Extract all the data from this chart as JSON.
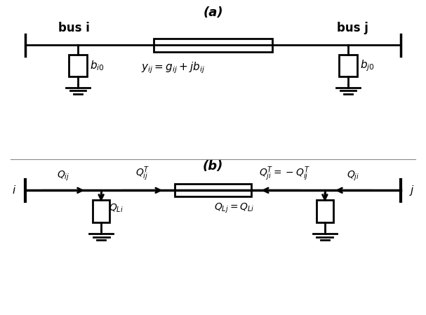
{
  "fig_width": 6.07,
  "fig_height": 4.49,
  "bg_color": "#ffffff",
  "line_color": "#000000",
  "text_color": "#000000",
  "panel_a_label": "(a)",
  "panel_b_label": "(b)",
  "bus_i_label": "bus i",
  "bus_j_label": "bus j",
  "bi0_label": "$b_{i0}$",
  "bj0_label": "$b_{j0}$",
  "yij_formula": "$y_{ij}= g_{ij} +jb_{ij}$",
  "i_label": "$i$",
  "j_label": "$j$",
  "Qij": "$Q_{ij}$",
  "QijT": "$Q_{ij}^{T}$",
  "QjiT_eq": "$Q_{ji}^{T}=-Q_{ij}^{T}$",
  "Qji": "$Q_{ji}$",
  "QLi": "$Q_{Li}$",
  "QLj_eq": "$Q_{Lj}=Q_{Li}$",
  "lw_main": 2.0,
  "lw_thin": 1.5
}
